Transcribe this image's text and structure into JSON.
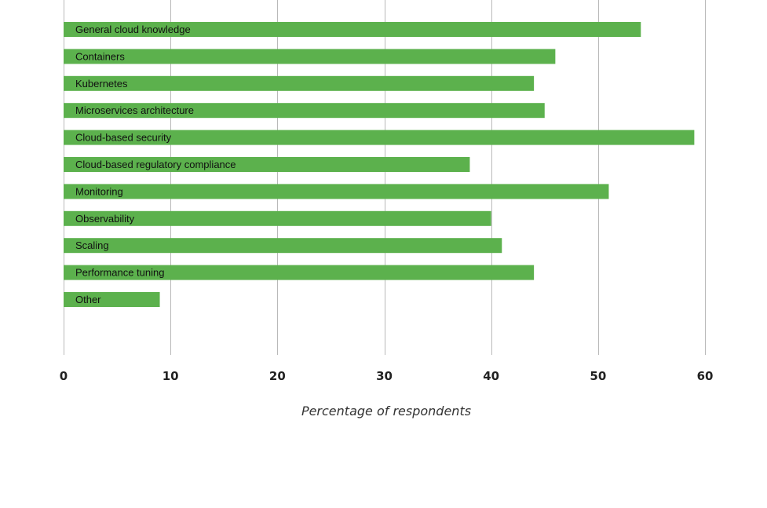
{
  "chart_data": {
    "type": "bar",
    "orientation": "horizontal",
    "categories": [
      "General cloud knowledge",
      "Containers",
      "Kubernetes",
      "Microservices architecture",
      "Cloud-based security",
      "Cloud-based regulatory compliance",
      "Monitoring",
      "Observability",
      "Scaling",
      "Performance tuning",
      "Other"
    ],
    "values": [
      54,
      46,
      44,
      45,
      59,
      38,
      51,
      40,
      41,
      44,
      9
    ],
    "xlabel": "Percentage of respondents",
    "ylabel": "",
    "xlim": [
      0,
      60
    ],
    "xticks": [
      0,
      10,
      20,
      30,
      40,
      50,
      60
    ],
    "grid": true,
    "legend": "none",
    "bar_color": "#5cb14d"
  }
}
